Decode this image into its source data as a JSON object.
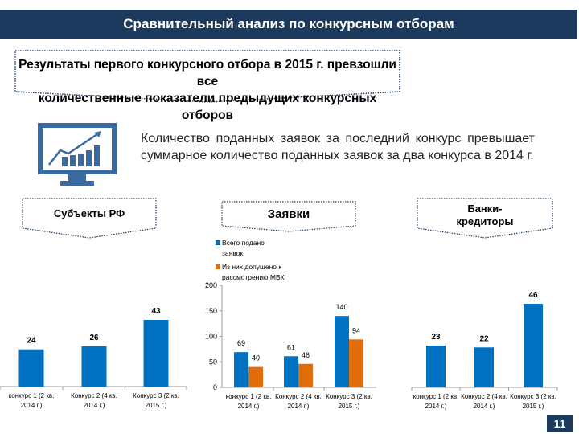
{
  "header": {
    "title": "Сравнительный анализ по конкурсным отборам"
  },
  "callout": {
    "line1": "Результаты первого конкурсного отбора в 2015 г. превзошли все",
    "line2": "количественные показатели предыдущих конкурсных отборов"
  },
  "intro": {
    "text": "Количество поданных заявок за последний конкурс превышает суммарное количество поданных заявок за два конкурса в 2014 г.",
    "icon": "monitor-growth-chart-icon"
  },
  "page_number": "11",
  "colors": {
    "header": "#1b3a5e",
    "blue": "#0070c0",
    "orange": "#e36c0a"
  },
  "chart_data": [
    {
      "type": "bar",
      "title": "Субъекты РФ",
      "categories": [
        [
          "конкурс 1 (2 кв.",
          "2014 г.)"
        ],
        [
          "Конкурс 2 (4 кв.",
          "2014 г.)"
        ],
        [
          "Конкурс 3 (2 кв.",
          "2015 г.)"
        ]
      ],
      "values": [
        24,
        26,
        43
      ],
      "data_labels": [
        "24",
        "26",
        "43"
      ]
    },
    {
      "type": "bar",
      "title": "Заявки",
      "categories": [
        [
          "конкурс 1 (2 кв.",
          "2014 г.)"
        ],
        [
          "Конкурс 2 (4 кв.",
          "2014 г.)"
        ],
        [
          "Конкурс 3 (2 кв.",
          "2015 г.)"
        ]
      ],
      "series": [
        {
          "name": [
            "Всего подано",
            "заявок"
          ],
          "values": [
            69,
            61,
            140
          ],
          "labels": [
            "69",
            "61",
            "140"
          ]
        },
        {
          "name": [
            "Из них допущено к",
            "рассмотрению МВК"
          ],
          "values": [
            40,
            46,
            94
          ],
          "labels": [
            "40",
            "46",
            "94"
          ]
        }
      ],
      "ylim": [
        0,
        200
      ],
      "yticks": [
        "0",
        "50",
        "100",
        "150",
        "200"
      ],
      "legend": "top-left"
    },
    {
      "type": "bar",
      "title_lines": [
        "Банки-",
        "кредиторы"
      ],
      "categories": [
        [
          "конкурс 1 (2 кв.",
          "2014 г.)"
        ],
        [
          "Конкурс 2 (4 кв.",
          "2014 г.)"
        ],
        [
          "Конкурс 3 (2 кв.",
          "2015 г.)"
        ]
      ],
      "values": [
        23,
        22,
        46
      ],
      "data_labels": [
        "23",
        "22",
        "46"
      ]
    }
  ]
}
